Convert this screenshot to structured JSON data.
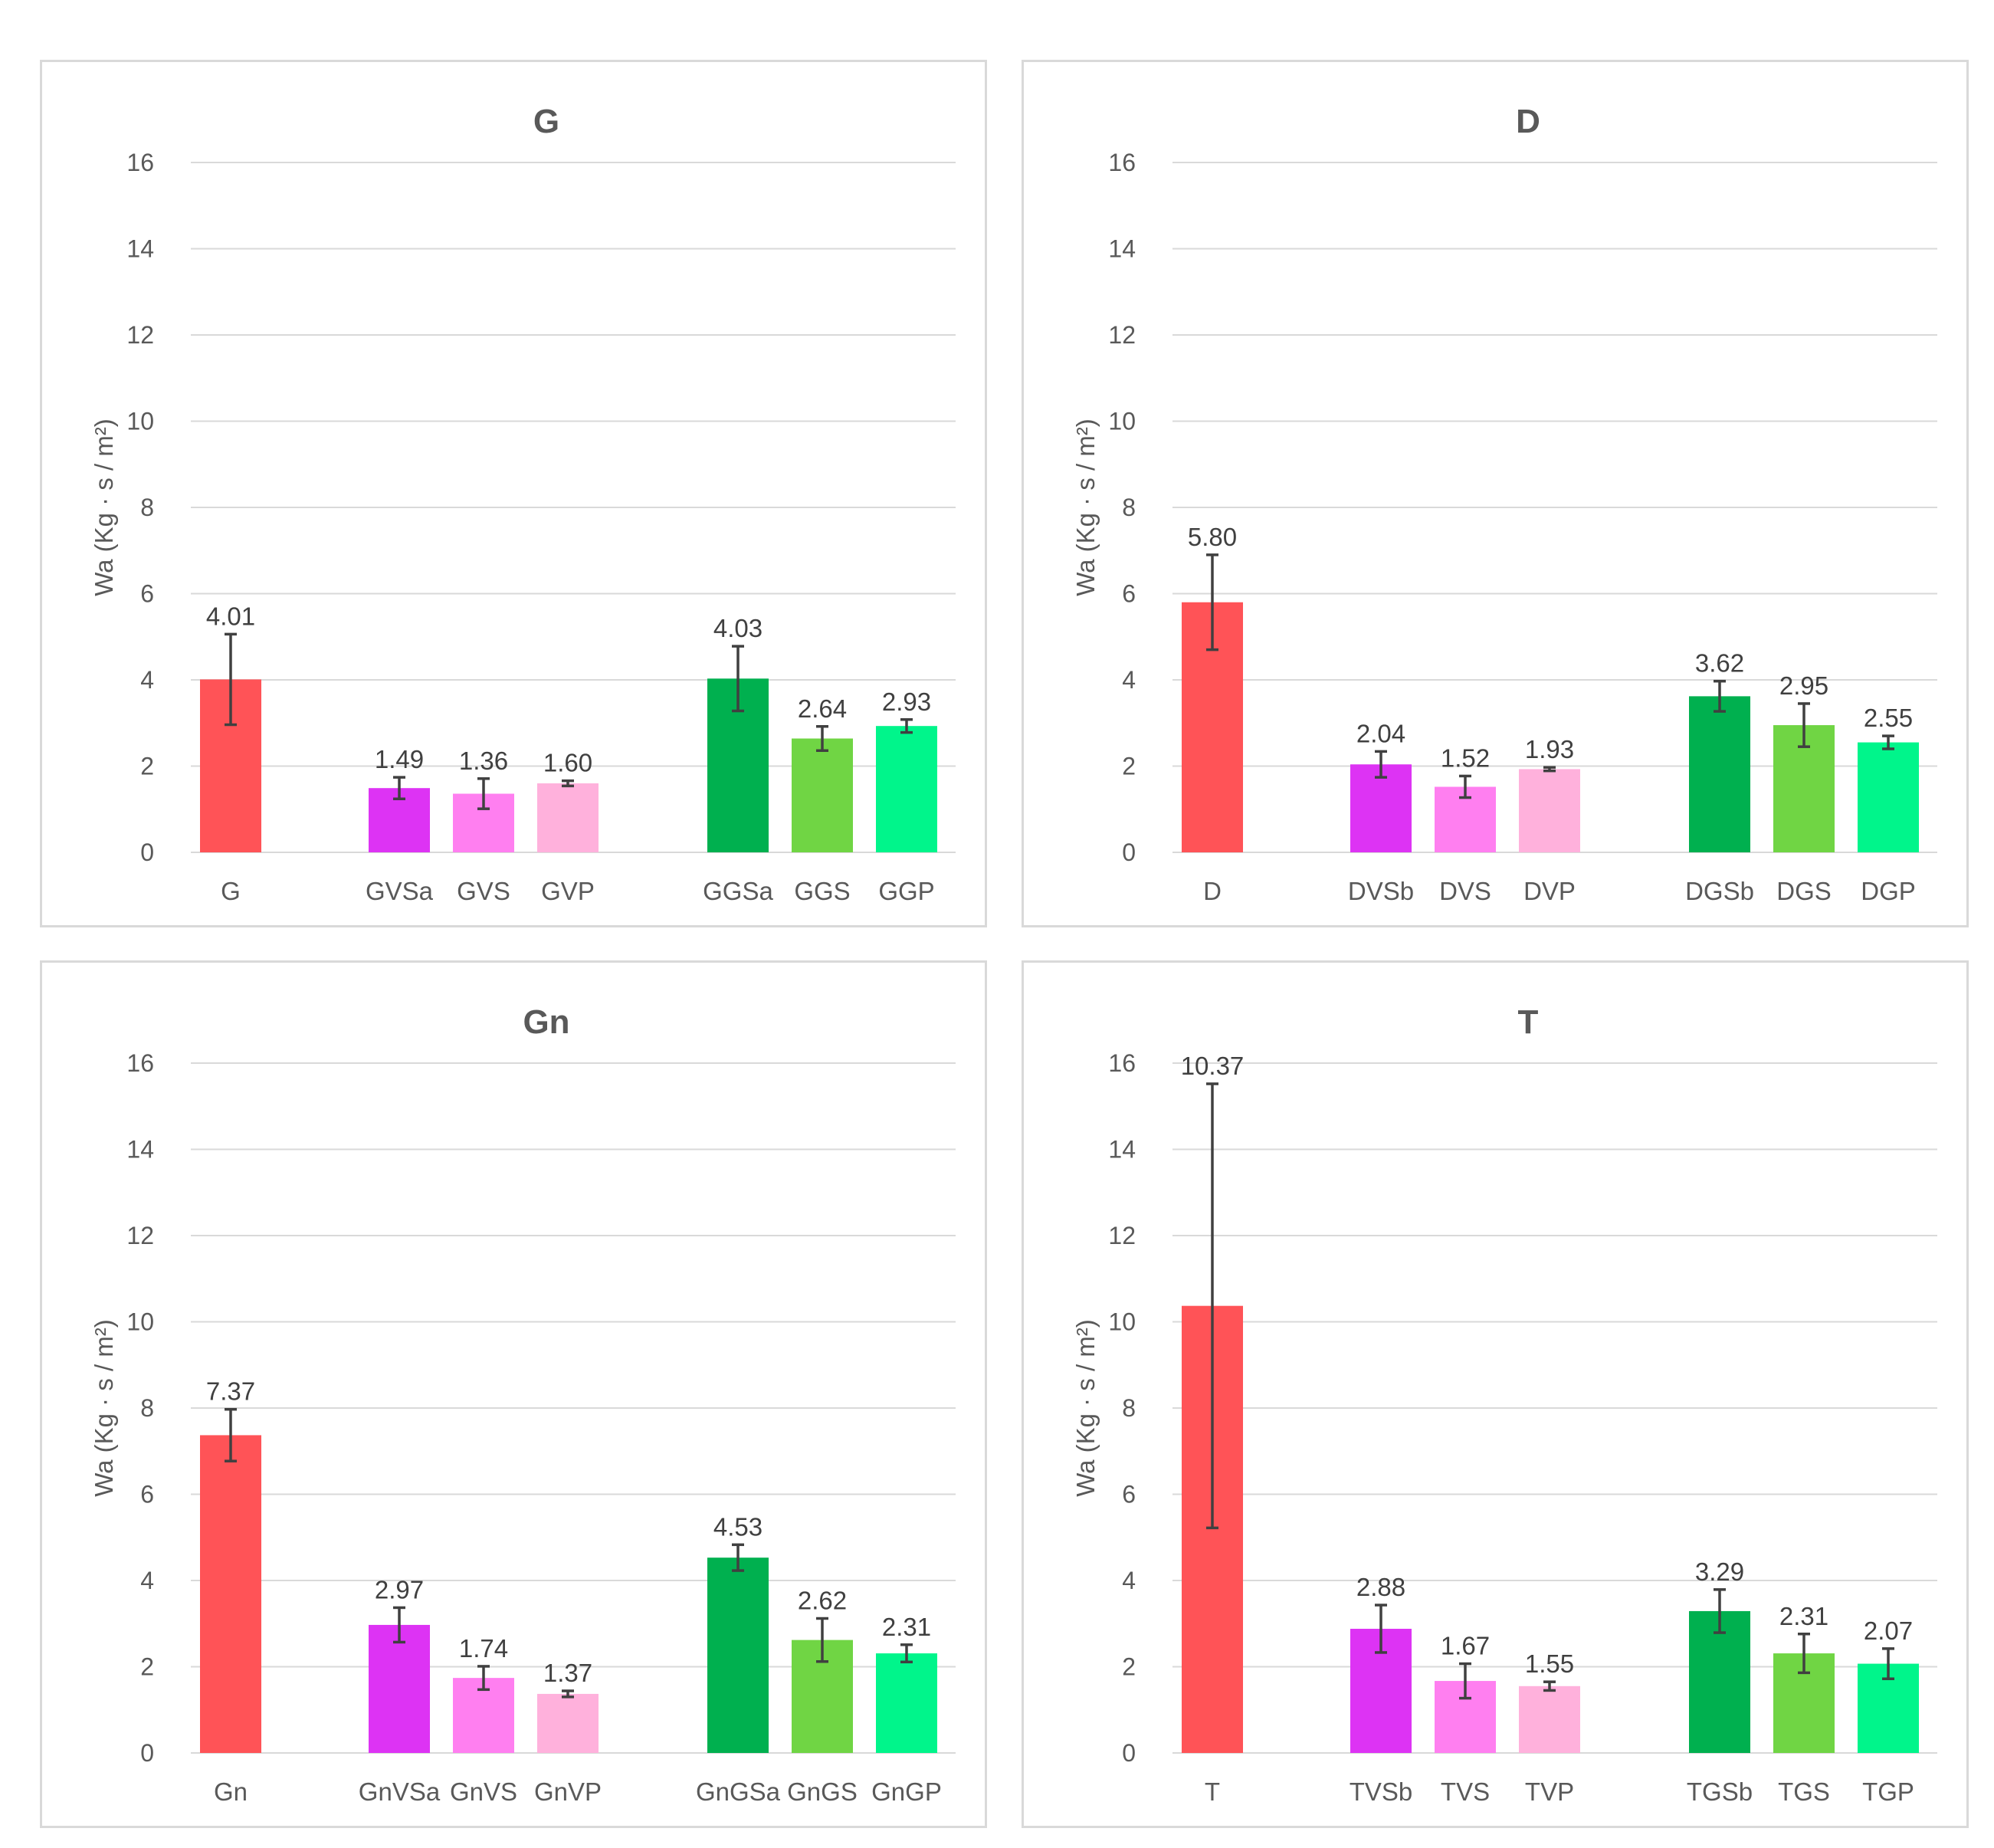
{
  "chart_data": [
    {
      "type": "bar",
      "title": "G",
      "ylabel": "Wa (Kg · s / m²)",
      "ylim": [
        0,
        16
      ],
      "yticks": [
        0,
        2,
        4,
        6,
        8,
        10,
        12,
        14,
        16
      ],
      "grid": true,
      "categories": [
        "G",
        "GVSa",
        "GVS",
        "GVP",
        "GGSa",
        "GGS",
        "GGP"
      ],
      "values": [
        4.01,
        1.49,
        1.36,
        1.6,
        4.03,
        2.64,
        2.93
      ],
      "value_labels": [
        "4.01",
        "1.49",
        "1.36",
        "1.60",
        "4.03",
        "2.64",
        "2.93"
      ],
      "errors": [
        1.05,
        0.25,
        0.35,
        0.06,
        0.75,
        0.28,
        0.15
      ],
      "colors": [
        "#ff5357",
        "#dd33f4",
        "#ff7ff0",
        "#ffb1dc",
        "#00b04f",
        "#70d544",
        "#00f58b"
      ]
    },
    {
      "type": "bar",
      "title": "D",
      "ylabel": "Wa (Kg · s / m²)",
      "ylim": [
        0,
        16
      ],
      "yticks": [
        0,
        2,
        4,
        6,
        8,
        10,
        12,
        14,
        16
      ],
      "grid": true,
      "categories": [
        "D",
        "DVSb",
        "DVS",
        "DVP",
        "DGSb",
        "DGS",
        "DGP"
      ],
      "values": [
        5.8,
        2.04,
        1.52,
        1.93,
        3.62,
        2.95,
        2.55
      ],
      "value_labels": [
        "5.80",
        "2.04",
        "1.52",
        "1.93",
        "3.62",
        "2.95",
        "2.55"
      ],
      "errors": [
        1.1,
        0.3,
        0.25,
        0.04,
        0.35,
        0.5,
        0.15
      ],
      "colors": [
        "#ff5357",
        "#dd33f4",
        "#ff7ff0",
        "#ffb1dc",
        "#00b04f",
        "#70d544",
        "#00f58b"
      ]
    },
    {
      "type": "bar",
      "title": "Gn",
      "ylabel": "Wa (Kg · s / m²)",
      "ylim": [
        0,
        16
      ],
      "yticks": [
        0,
        2,
        4,
        6,
        8,
        10,
        12,
        14,
        16
      ],
      "grid": true,
      "categories": [
        "Gn",
        "GnVSa",
        "GnVS",
        "GnVP",
        "GnGSa",
        "GnGS",
        "GnGP"
      ],
      "values": [
        7.37,
        2.97,
        1.74,
        1.37,
        4.53,
        2.62,
        2.31
      ],
      "value_labels": [
        "7.37",
        "2.97",
        "1.74",
        "1.37",
        "4.53",
        "2.62",
        "2.31"
      ],
      "errors": [
        0.6,
        0.4,
        0.27,
        0.07,
        0.3,
        0.5,
        0.2
      ],
      "colors": [
        "#ff5357",
        "#dd33f4",
        "#ff7ff0",
        "#ffb1dc",
        "#00b04f",
        "#70d544",
        "#00f58b"
      ]
    },
    {
      "type": "bar",
      "title": "T",
      "ylabel": "Wa (Kg · s / m²)",
      "ylim": [
        0,
        16
      ],
      "yticks": [
        0,
        2,
        4,
        6,
        8,
        10,
        12,
        14,
        16
      ],
      "grid": true,
      "categories": [
        "T",
        "TVSb",
        "TVS",
        "TVP",
        "TGSb",
        "TGS",
        "TGP"
      ],
      "values": [
        10.37,
        2.88,
        1.67,
        1.55,
        3.29,
        2.31,
        2.07
      ],
      "value_labels": [
        "10.37",
        "2.88",
        "1.67",
        "1.55",
        "3.29",
        "2.31",
        "2.07"
      ],
      "errors": [
        5.15,
        0.55,
        0.4,
        0.1,
        0.5,
        0.45,
        0.35
      ],
      "colors": [
        "#ff5357",
        "#dd33f4",
        "#ff7ff0",
        "#ffb1dc",
        "#00b04f",
        "#70d544",
        "#00f58b"
      ]
    }
  ]
}
